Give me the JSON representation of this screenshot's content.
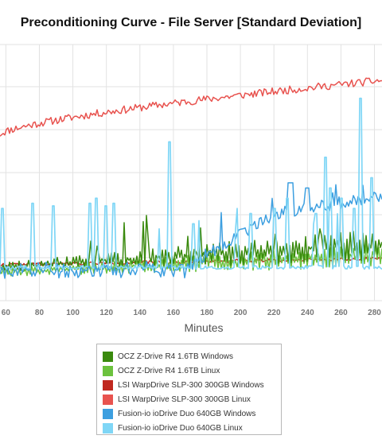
{
  "chart_data": {
    "type": "line",
    "title": "Preconditioning Curve - File Server [Standard Deviation]",
    "xlabel": "Minutes",
    "ylabel": "",
    "x_ticks": [
      60,
      80,
      100,
      120,
      140,
      160,
      180,
      200,
      220,
      240,
      260,
      280
    ],
    "x_tick_labels": [
      "60",
      "80",
      "100",
      "120",
      "140",
      "160",
      "180",
      "200",
      "220",
      "240",
      "260",
      "280"
    ],
    "xlim": [
      56.5,
      284.5
    ],
    "ylim": [
      0,
      1
    ],
    "grid": true,
    "legend_position": "bottom",
    "series": [
      {
        "name": "OCZ Z-Drive R4 1.6TB Windows",
        "color": "#3a8a0e",
        "curve": "ocz_win"
      },
      {
        "name": "OCZ Z-Drive R4 1.6TB Linux",
        "color": "#6cc23e",
        "curve": "ocz_lin"
      },
      {
        "name": "LSI WarpDrive SLP-300 300GB Windows",
        "color": "#c0281f",
        "curve": "lsi_win"
      },
      {
        "name": "LSI WarpDrive SLP-300 300GB Linux",
        "color": "#e8534f",
        "curve": "lsi_lin"
      },
      {
        "name": "Fusion-io ioDrive Duo 640GB Windows",
        "color": "#3d9fe0",
        "curve": "fio_win"
      },
      {
        "name": "Fusion-io ioDrive Duo 640GB Linux",
        "color": "#7fd6f6",
        "curve": "fio_lin"
      }
    ]
  }
}
